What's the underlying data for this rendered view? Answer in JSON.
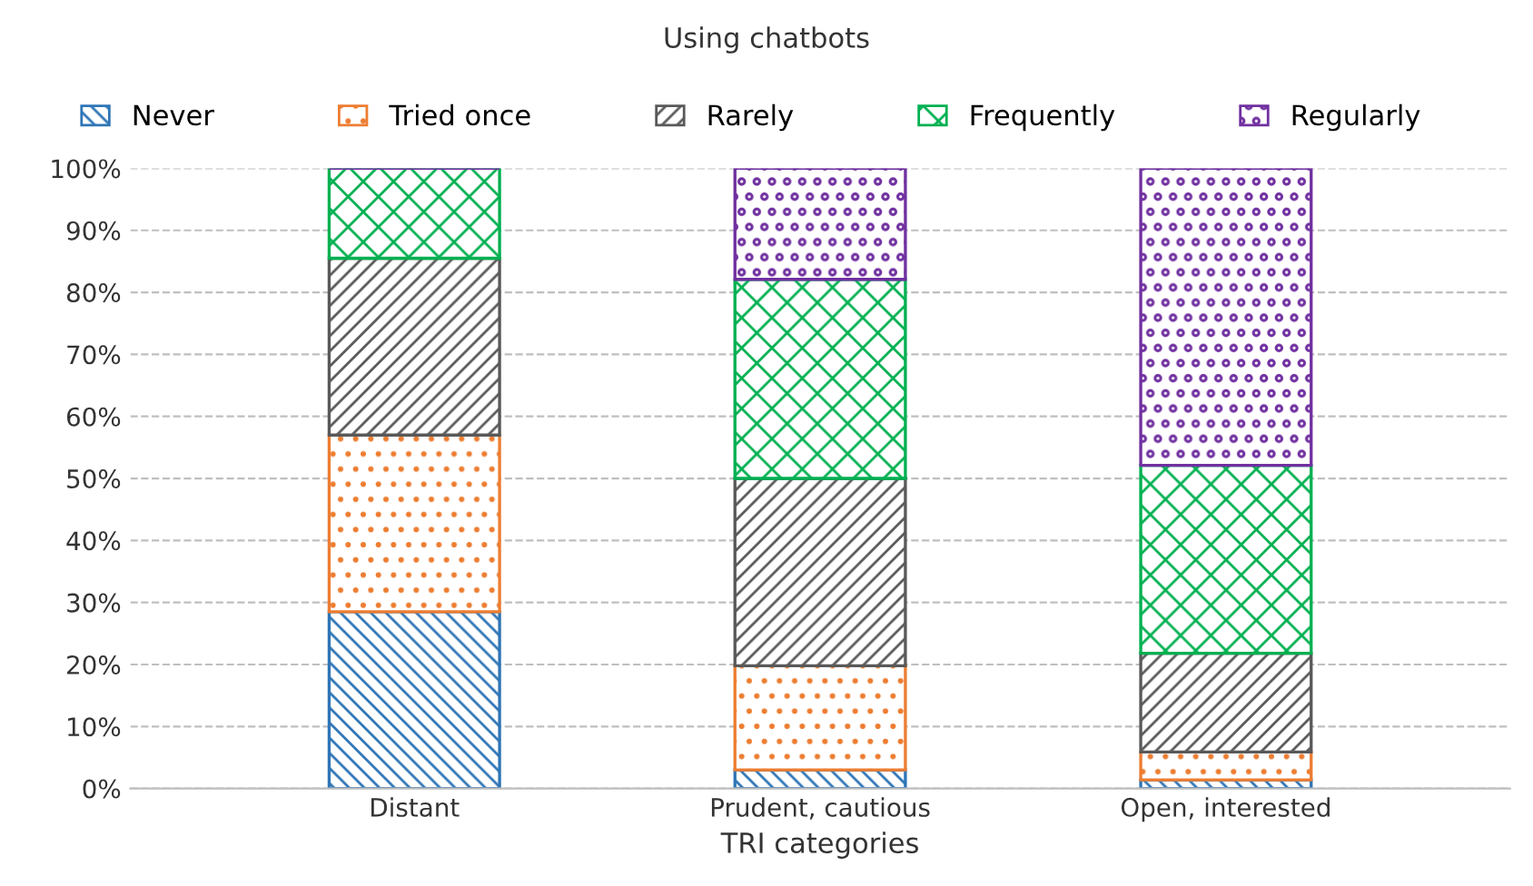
{
  "chart_data": {
    "type": "bar",
    "title": "Using chatbots",
    "xlabel": "TRI categories",
    "categories": [
      "Distant",
      "Prudent, cautious",
      "Open, interested"
    ],
    "stacked": true,
    "series": [
      {
        "name": "Never",
        "color": "#2e75b6",
        "values": [
          28.5,
          3.0,
          1.4
        ]
      },
      {
        "name": "Tried once",
        "color": "#ed7d31",
        "values": [
          28.5,
          16.8,
          4.5
        ]
      },
      {
        "name": "Rarely",
        "color": "#595959",
        "values": [
          28.5,
          30.2,
          15.9
        ]
      },
      {
        "name": "Frequently",
        "color": "#00b050",
        "values": [
          14.5,
          32.1,
          30.3
        ]
      },
      {
        "name": "Regularly",
        "color": "#7030a0",
        "values": [
          0,
          17.9,
          47.9
        ]
      }
    ],
    "ylim": [
      0,
      100
    ],
    "yticks": [
      {
        "value": 0,
        "label": "0%"
      },
      {
        "value": 10,
        "label": "10%"
      },
      {
        "value": 20,
        "label": "20%"
      },
      {
        "value": 30,
        "label": "30%"
      },
      {
        "value": 40,
        "label": "40%"
      },
      {
        "value": 50,
        "label": "50%"
      },
      {
        "value": 60,
        "label": "60%"
      },
      {
        "value": 70,
        "label": "70%"
      },
      {
        "value": 80,
        "label": "80%"
      },
      {
        "value": 90,
        "label": "90%"
      },
      {
        "value": 100,
        "label": "100%"
      }
    ],
    "grid": "y",
    "legend": "top"
  }
}
